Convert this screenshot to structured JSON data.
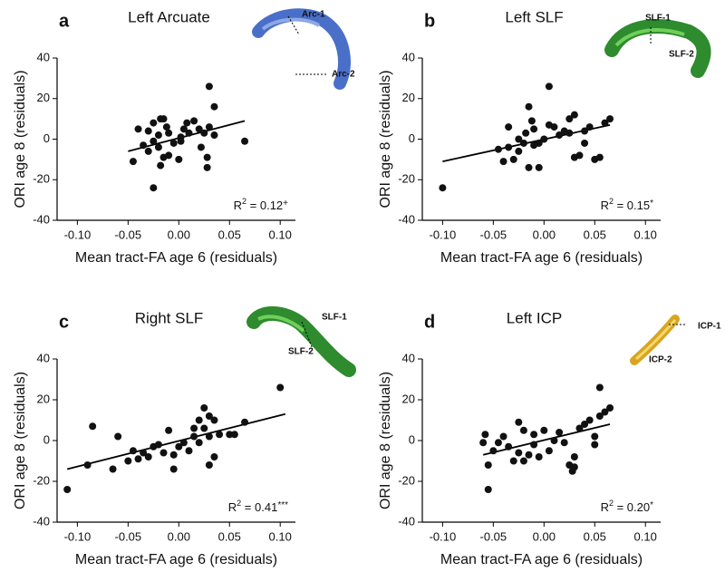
{
  "chart_data": [
    {
      "type": "scatter",
      "panel": "a",
      "title": "Left Arcuate",
      "x_label": "Mean tract-FA age 6 (residuals)",
      "y_label": "ORI age 8 (residuals)",
      "annotation": {
        "base": "R",
        "exp": "2",
        "text": " = 0.12",
        "mark": "+"
      },
      "inset_labels": [
        "Arc-1",
        "Arc-2"
      ],
      "xlim": [
        -0.12,
        0.115
      ],
      "ylim": [
        -40,
        40
      ],
      "xticks": [
        {
          "value": -0.1,
          "label": "-0.10"
        },
        {
          "value": -0.05,
          "label": "-0.05"
        },
        {
          "value": 0,
          "label": "0.00"
        },
        {
          "value": 0.05,
          "label": "0.05"
        },
        {
          "value": 0.1,
          "label": "0.10"
        }
      ],
      "yticks": [
        40,
        20,
        0,
        -20,
        -40
      ],
      "color": "#111111",
      "x": [
        -0.045,
        -0.04,
        -0.035,
        -0.03,
        -0.03,
        -0.025,
        -0.025,
        -0.02,
        -0.02,
        -0.018,
        -0.015,
        -0.015,
        -0.012,
        -0.01,
        -0.01,
        -0.005,
        0,
        0.002,
        0.005,
        0.008,
        0.01,
        0.015,
        0.02,
        0.022,
        0.025,
        0.028,
        0.028,
        0.03,
        0.03,
        0.035,
        0.035,
        0.065,
        -0.025,
        -0.018,
        0.002
      ],
      "values": [
        -11,
        5,
        -3,
        4,
        -6,
        -1,
        8,
        -4,
        2,
        -13,
        10,
        -9,
        6,
        3,
        -8,
        -2,
        -10,
        -1,
        5,
        8,
        3,
        9,
        5,
        -4,
        3,
        -14,
        -9,
        26,
        6,
        2,
        16,
        -1,
        -24,
        10,
        1
      ],
      "trendline": {
        "x": [
          -0.05,
          0.065
        ],
        "values": [
          -6,
          9
        ]
      }
    },
    {
      "type": "scatter",
      "panel": "b",
      "title": "Left SLF",
      "x_label": "Mean tract-FA age 6 (residuals)",
      "y_label": "ORI age 8 (residuals)",
      "annotation": {
        "base": "R",
        "exp": "2",
        "text": " = 0.15",
        "mark": "*"
      },
      "inset_labels": [
        "SLF-1",
        "SLF-2"
      ],
      "xlim": [
        -0.12,
        0.115
      ],
      "ylim": [
        -40,
        40
      ],
      "xticks": [
        {
          "value": -0.1,
          "label": "-0.10"
        },
        {
          "value": -0.05,
          "label": "-0.05"
        },
        {
          "value": 0,
          "label": "0.00"
        },
        {
          "value": 0.05,
          "label": "0.05"
        },
        {
          "value": 0.1,
          "label": "0.10"
        }
      ],
      "yticks": [
        40,
        20,
        0,
        -20,
        -40
      ],
      "color": "#111111",
      "x": [
        -0.1,
        -0.045,
        -0.04,
        -0.035,
        -0.035,
        -0.03,
        -0.025,
        -0.025,
        -0.02,
        -0.018,
        -0.015,
        -0.012,
        -0.01,
        -0.01,
        -0.005,
        -0.005,
        0,
        0.005,
        0.005,
        0.01,
        0.015,
        0.02,
        0.025,
        0.025,
        0.03,
        0.03,
        0.035,
        0.04,
        0.045,
        0.05,
        0.055,
        0.06,
        0.065,
        -0.015,
        0.04
      ],
      "values": [
        -24,
        -5,
        -11,
        -4,
        6,
        -10,
        -6,
        0,
        -2,
        3,
        -14,
        9,
        5,
        -3,
        -14,
        -2,
        0,
        26,
        7,
        6,
        2,
        4,
        3,
        10,
        12,
        -9,
        -8,
        4,
        6,
        -10,
        -9,
        8,
        10,
        16,
        -2
      ],
      "trendline": {
        "x": [
          -0.1,
          0.065
        ],
        "values": [
          -11,
          7
        ]
      }
    },
    {
      "type": "scatter",
      "panel": "c",
      "title": "Right SLF",
      "x_label": "Mean tract-FA age 6 (residuals)",
      "y_label": "ORI age 8 (residuals)",
      "annotation": {
        "base": "R",
        "exp": "2",
        "text": " = 0.41",
        "mark": "***"
      },
      "inset_labels": [
        "SLF-1",
        "SLF-2"
      ],
      "xlim": [
        -0.12,
        0.115
      ],
      "ylim": [
        -40,
        40
      ],
      "xticks": [
        {
          "value": -0.1,
          "label": "-0.10"
        },
        {
          "value": -0.05,
          "label": "-0.05"
        },
        {
          "value": 0,
          "label": "0.00"
        },
        {
          "value": 0.05,
          "label": "0.05"
        },
        {
          "value": 0.1,
          "label": "0.10"
        }
      ],
      "yticks": [
        40,
        20,
        0,
        -20,
        -40
      ],
      "color": "#111111",
      "x": [
        -0.11,
        -0.09,
        -0.085,
        -0.065,
        -0.06,
        -0.05,
        -0.045,
        -0.04,
        -0.035,
        -0.03,
        -0.025,
        -0.02,
        -0.015,
        -0.01,
        -0.005,
        -0.005,
        0,
        0.005,
        0.01,
        0.015,
        0.015,
        0.02,
        0.02,
        0.025,
        0.025,
        0.03,
        0.03,
        0.035,
        0.035,
        0.04,
        0.05,
        0.055,
        0.065,
        0.1,
        0.03
      ],
      "values": [
        -24,
        -12,
        7,
        -14,
        2,
        -10,
        -5,
        -9,
        -6,
        -8,
        -3,
        -2,
        -6,
        5,
        -14,
        -7,
        -3,
        -1,
        -5,
        6,
        2,
        10,
        -1,
        16,
        6,
        12,
        2,
        -8,
        10,
        3,
        3,
        3,
        9,
        26,
        -12
      ],
      "trendline": {
        "x": [
          -0.11,
          0.105
        ],
        "values": [
          -14,
          13
        ]
      }
    },
    {
      "type": "scatter",
      "panel": "d",
      "title": "Left ICP",
      "x_label": "Mean tract-FA age 6 (residuals)",
      "y_label": "ORI age 8 (residuals)",
      "annotation": {
        "base": "R",
        "exp": "2",
        "text": " = 0.20",
        "mark": "*"
      },
      "inset_labels": [
        "ICP-1",
        "ICP-2"
      ],
      "xlim": [
        -0.12,
        0.115
      ],
      "ylim": [
        -40,
        40
      ],
      "xticks": [
        {
          "value": -0.1,
          "label": "-0.10"
        },
        {
          "value": -0.05,
          "label": "-0.05"
        },
        {
          "value": 0,
          "label": "0.00"
        },
        {
          "value": 0.05,
          "label": "0.05"
        },
        {
          "value": 0.1,
          "label": "0.10"
        }
      ],
      "yticks": [
        40,
        20,
        0,
        -20,
        -40
      ],
      "color": "#111111",
      "x": [
        -0.06,
        -0.058,
        -0.055,
        -0.055,
        -0.05,
        -0.045,
        -0.04,
        -0.035,
        -0.03,
        -0.025,
        -0.025,
        -0.02,
        -0.02,
        -0.015,
        -0.01,
        -0.01,
        -0.005,
        0,
        0.005,
        0.01,
        0.015,
        0.02,
        0.025,
        0.028,
        0.03,
        0.035,
        0.04,
        0.045,
        0.05,
        0.055,
        0.055,
        0.06,
        0.065,
        0.03,
        0.05
      ],
      "values": [
        -1,
        3,
        -24,
        -12,
        -5,
        -1,
        2,
        -3,
        -10,
        -6,
        9,
        5,
        -10,
        -7,
        3,
        -2,
        -8,
        5,
        -5,
        0,
        4,
        -1,
        -12,
        -15,
        -8,
        6,
        8,
        10,
        -2,
        26,
        12,
        14,
        16,
        -13,
        2
      ],
      "trendline": {
        "x": [
          -0.06,
          0.065
        ],
        "values": [
          -7,
          8
        ]
      }
    }
  ]
}
